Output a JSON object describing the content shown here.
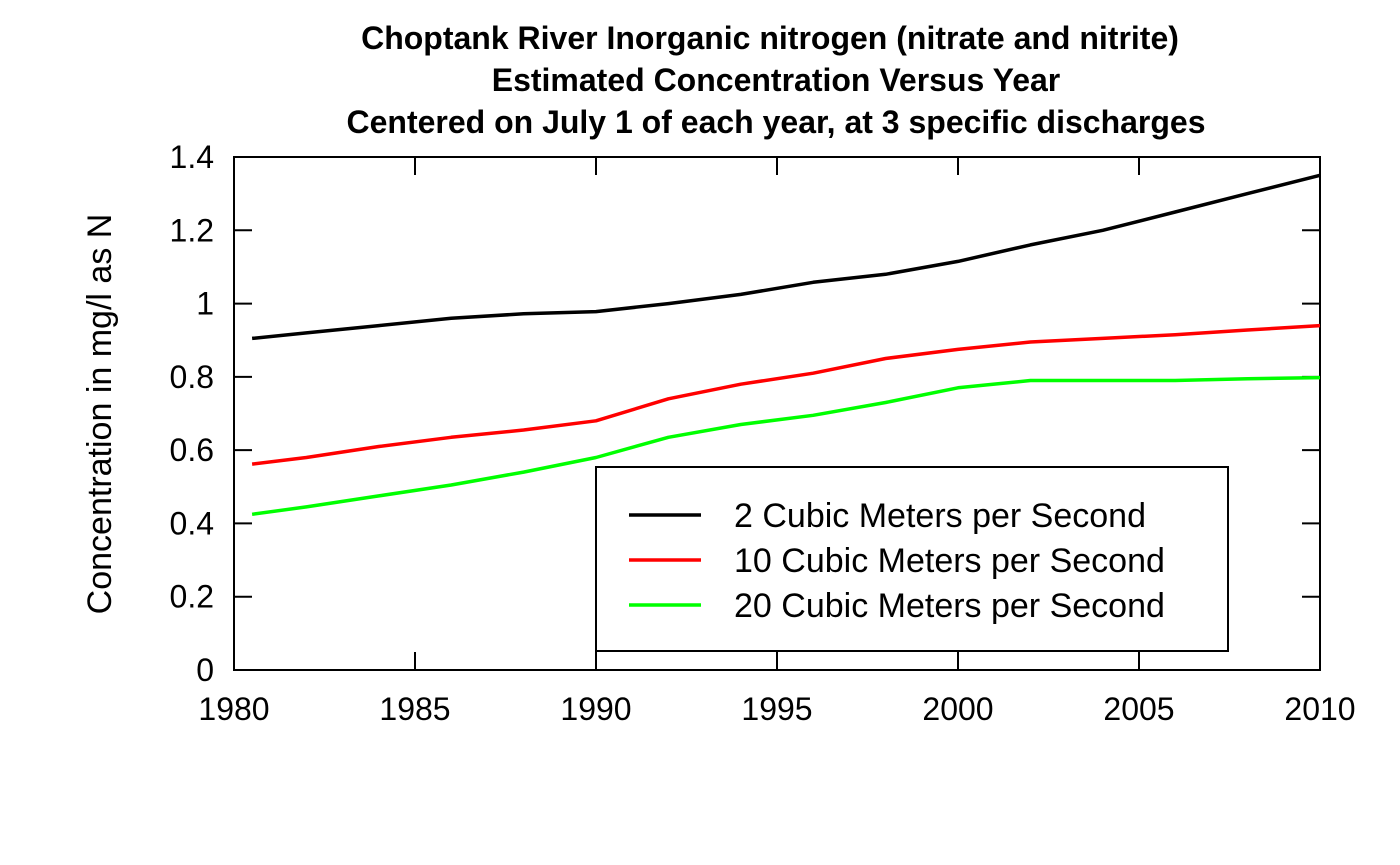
{
  "chart_data": {
    "type": "line",
    "title": [
      "Choptank River    Inorganic nitrogen (nitrate and nitrite)",
      "Estimated Concentration Versus Year",
      "Centered on July 1 of each year, at 3 specific discharges"
    ],
    "xlabel": "",
    "ylabel": "Concentration in mg/l as N",
    "xlim": [
      1980,
      2010
    ],
    "ylim": [
      0,
      1.4
    ],
    "xticks": [
      1980,
      1985,
      1990,
      1995,
      2000,
      2005,
      2010
    ],
    "yticks": [
      0,
      0.2,
      0.4,
      0.6,
      0.8,
      1,
      1.2,
      1.4
    ],
    "xtick_labels": [
      "1980",
      "1985",
      "1990",
      "1995",
      "2000",
      "2005",
      "2010"
    ],
    "ytick_labels": [
      "0",
      "0.2",
      "0.4",
      "0.6",
      "0.8",
      "1",
      "1.2",
      "1.4"
    ],
    "grid": false,
    "legend_position": "bottom-right",
    "x": [
      1980.5,
      1982,
      1984,
      1986,
      1988,
      1990,
      1992,
      1994,
      1996,
      1998,
      2000,
      2002,
      2004,
      2006,
      2008,
      2010
    ],
    "series": [
      {
        "name": "2 Cubic Meters per Second",
        "color": "#000000",
        "values": [
          0.905,
          0.92,
          0.94,
          0.96,
          0.972,
          0.978,
          1.0,
          1.025,
          1.058,
          1.08,
          1.115,
          1.16,
          1.2,
          1.25,
          1.3,
          1.35
        ]
      },
      {
        "name": "10 Cubic Meters per Second",
        "color": "#ff0000",
        "values": [
          0.562,
          0.58,
          0.61,
          0.635,
          0.655,
          0.68,
          0.74,
          0.78,
          0.81,
          0.85,
          0.875,
          0.895,
          0.905,
          0.915,
          0.928,
          0.94
        ]
      },
      {
        "name": "20 Cubic Meters per Second",
        "color": "#00ff00",
        "values": [
          0.425,
          0.445,
          0.475,
          0.505,
          0.54,
          0.58,
          0.635,
          0.67,
          0.695,
          0.73,
          0.77,
          0.79,
          0.79,
          0.79,
          0.795,
          0.798
        ]
      }
    ]
  }
}
